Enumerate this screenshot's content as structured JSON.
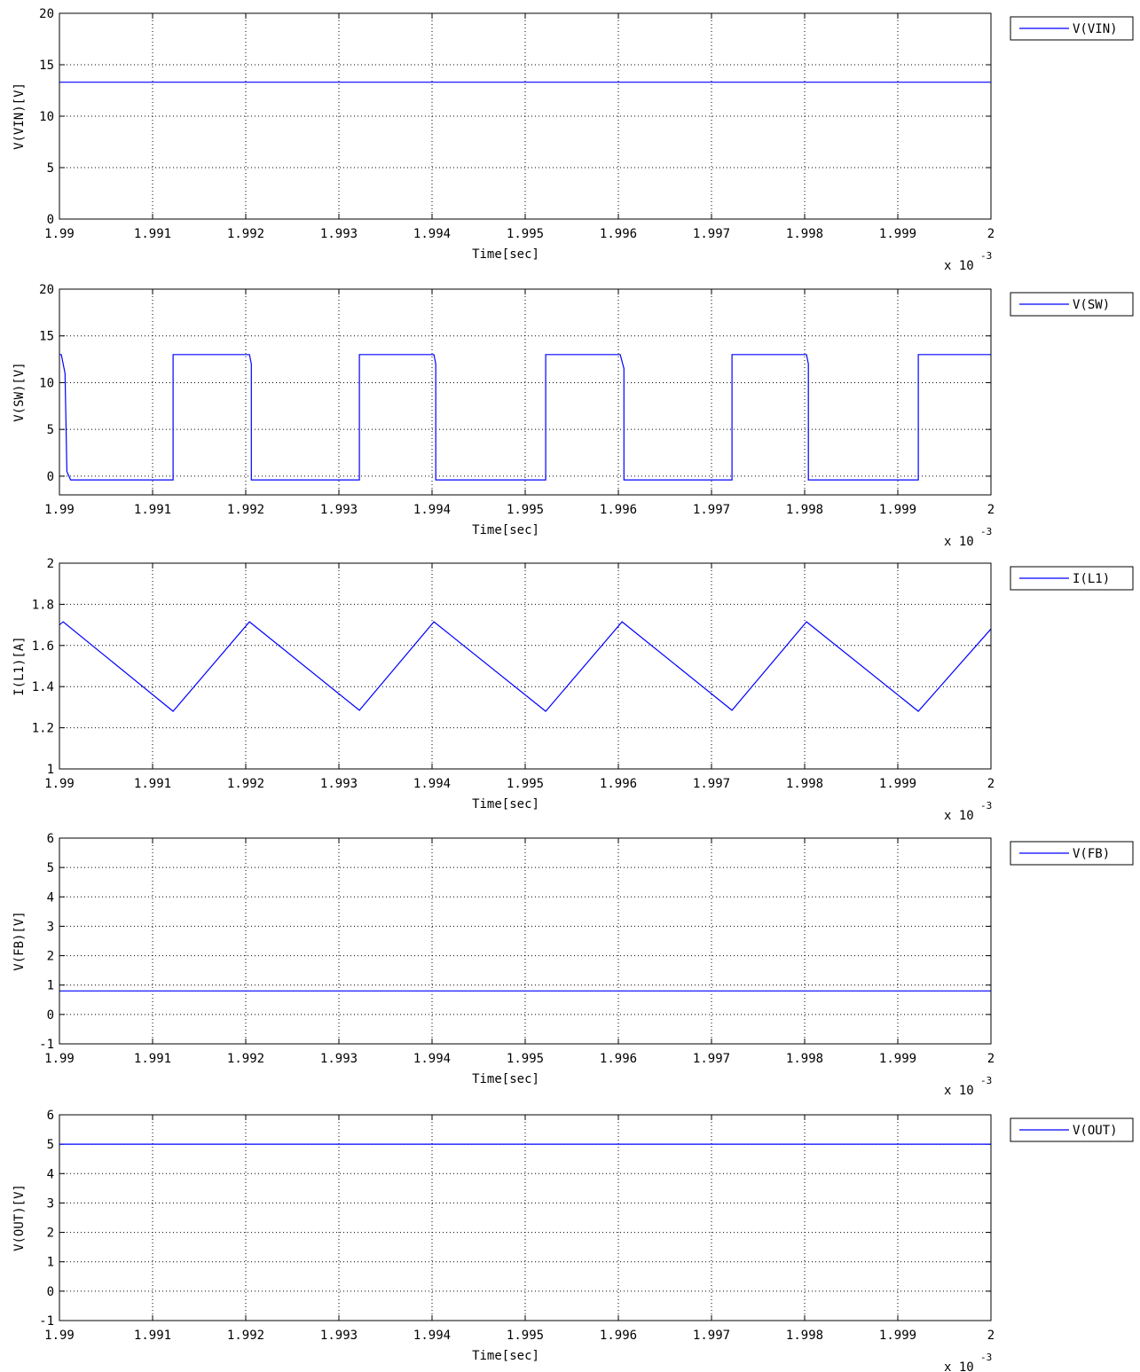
{
  "chart_data": [
    {
      "type": "line",
      "ylabel": "V(VIN)[V]",
      "xlabel": "Time[sec]",
      "x_exponent_base": "x 10",
      "x_exponent_power": "-3",
      "xlim": [
        1.99,
        2.0
      ],
      "ylim": [
        0,
        20
      ],
      "xticks": [
        1.99,
        1.991,
        1.992,
        1.993,
        1.994,
        1.995,
        1.996,
        1.997,
        1.998,
        1.999,
        2.0
      ],
      "xtick_labels": [
        "1.99",
        "1.991",
        "1.992",
        "1.993",
        "1.994",
        "1.995",
        "1.996",
        "1.997",
        "1.998",
        "1.999",
        "2"
      ],
      "yticks": [
        0,
        5,
        10,
        15,
        20
      ],
      "ytick_labels": [
        "0",
        "5",
        "10",
        "15",
        "20"
      ],
      "grid": true,
      "legend_position": "outside-right",
      "series": [
        {
          "name": "V(VIN)",
          "color": "#0000ff",
          "x": [
            1.99,
            2.0
          ],
          "y": [
            13.3,
            13.3
          ]
        }
      ]
    },
    {
      "type": "line",
      "ylabel": "V(SW)[V]",
      "xlabel": "Time[sec]",
      "x_exponent_base": "x 10",
      "x_exponent_power": "-3",
      "xlim": [
        1.99,
        2.0
      ],
      "ylim": [
        -2,
        20
      ],
      "xticks": [
        1.99,
        1.991,
        1.992,
        1.993,
        1.994,
        1.995,
        1.996,
        1.997,
        1.998,
        1.999,
        2.0
      ],
      "xtick_labels": [
        "1.99",
        "1.991",
        "1.992",
        "1.993",
        "1.994",
        "1.995",
        "1.996",
        "1.997",
        "1.998",
        "1.999",
        "2"
      ],
      "yticks": [
        0,
        5,
        10,
        15,
        20
      ],
      "ytick_labels": [
        "0",
        "5",
        "10",
        "15",
        "20"
      ],
      "grid": true,
      "legend_position": "outside-right",
      "series": [
        {
          "name": "V(SW)",
          "color": "#0000ff",
          "x": [
            1.99,
            1.99002,
            1.99006,
            1.99008,
            1.99012,
            1.99122,
            1.99122,
            1.99204,
            1.99206,
            1.99206,
            1.99322,
            1.99322,
            1.99402,
            1.99404,
            1.99404,
            1.99522,
            1.99522,
            1.99602,
            1.99606,
            1.99606,
            1.99722,
            1.99722,
            1.99802,
            1.99804,
            1.99804,
            1.99922,
            1.99922,
            2.0
          ],
          "y": [
            13.0,
            13.0,
            11.0,
            0.5,
            -0.4,
            -0.4,
            13.0,
            13.0,
            12.0,
            -0.4,
            -0.4,
            13.0,
            13.0,
            12.0,
            -0.4,
            -0.4,
            13.0,
            13.0,
            11.5,
            -0.4,
            -0.4,
            13.0,
            13.0,
            12.0,
            -0.4,
            -0.4,
            13.0,
            13.0
          ]
        }
      ]
    },
    {
      "type": "line",
      "ylabel": "I(L1)[A]",
      "xlabel": "Time[sec]",
      "x_exponent_base": "x 10",
      "x_exponent_power": "-3",
      "xlim": [
        1.99,
        2.0
      ],
      "ylim": [
        1,
        2
      ],
      "xticks": [
        1.99,
        1.991,
        1.992,
        1.993,
        1.994,
        1.995,
        1.996,
        1.997,
        1.998,
        1.999,
        2.0
      ],
      "xtick_labels": [
        "1.99",
        "1.991",
        "1.992",
        "1.993",
        "1.994",
        "1.995",
        "1.996",
        "1.997",
        "1.998",
        "1.999",
        "2"
      ],
      "yticks": [
        1,
        1.2,
        1.4,
        1.6,
        1.8,
        2
      ],
      "ytick_labels": [
        "1",
        "1.2",
        "1.4",
        "1.6",
        "1.8",
        "2"
      ],
      "grid": true,
      "legend_position": "outside-right",
      "series": [
        {
          "name": "I(L1)",
          "color": "#0000ff",
          "x": [
            1.99,
            1.99004,
            1.99122,
            1.99204,
            1.99322,
            1.99402,
            1.99522,
            1.99604,
            1.99722,
            1.99802,
            1.99922,
            2.0
          ],
          "y": [
            1.7,
            1.715,
            1.28,
            1.715,
            1.285,
            1.715,
            1.28,
            1.715,
            1.285,
            1.715,
            1.28,
            1.68
          ]
        }
      ]
    },
    {
      "type": "line",
      "ylabel": "V(FB)[V]",
      "xlabel": "Time[sec]",
      "x_exponent_base": "x 10",
      "x_exponent_power": "-3",
      "xlim": [
        1.99,
        2.0
      ],
      "ylim": [
        -1,
        6
      ],
      "xticks": [
        1.99,
        1.991,
        1.992,
        1.993,
        1.994,
        1.995,
        1.996,
        1.997,
        1.998,
        1.999,
        2.0
      ],
      "xtick_labels": [
        "1.99",
        "1.991",
        "1.992",
        "1.993",
        "1.994",
        "1.995",
        "1.996",
        "1.997",
        "1.998",
        "1.999",
        "2"
      ],
      "yticks": [
        -1,
        0,
        1,
        2,
        3,
        4,
        5,
        6
      ],
      "ytick_labels": [
        "-1",
        "0",
        "1",
        "2",
        "3",
        "4",
        "5",
        "6"
      ],
      "grid": true,
      "legend_position": "outside-right",
      "series": [
        {
          "name": "V(FB)",
          "color": "#0000ff",
          "x": [
            1.99,
            2.0
          ],
          "y": [
            0.8,
            0.8
          ]
        }
      ]
    },
    {
      "type": "line",
      "ylabel": "V(OUT)[V]",
      "xlabel": "Time[sec]",
      "x_exponent_base": "x 10",
      "x_exponent_power": "-3",
      "xlim": [
        1.99,
        2.0
      ],
      "ylim": [
        -1,
        6
      ],
      "xticks": [
        1.99,
        1.991,
        1.992,
        1.993,
        1.994,
        1.995,
        1.996,
        1.997,
        1.998,
        1.999,
        2.0
      ],
      "xtick_labels": [
        "1.99",
        "1.991",
        "1.992",
        "1.993",
        "1.994",
        "1.995",
        "1.996",
        "1.997",
        "1.998",
        "1.999",
        "2"
      ],
      "yticks": [
        -1,
        0,
        1,
        2,
        3,
        4,
        5,
        6
      ],
      "ytick_labels": [
        "-1",
        "0",
        "1",
        "2",
        "3",
        "4",
        "5",
        "6"
      ],
      "grid": true,
      "legend_position": "outside-right",
      "series": [
        {
          "name": "V(OUT)",
          "color": "#0000ff",
          "x": [
            1.99,
            2.0
          ],
          "y": [
            5.0,
            5.0
          ]
        }
      ]
    }
  ]
}
